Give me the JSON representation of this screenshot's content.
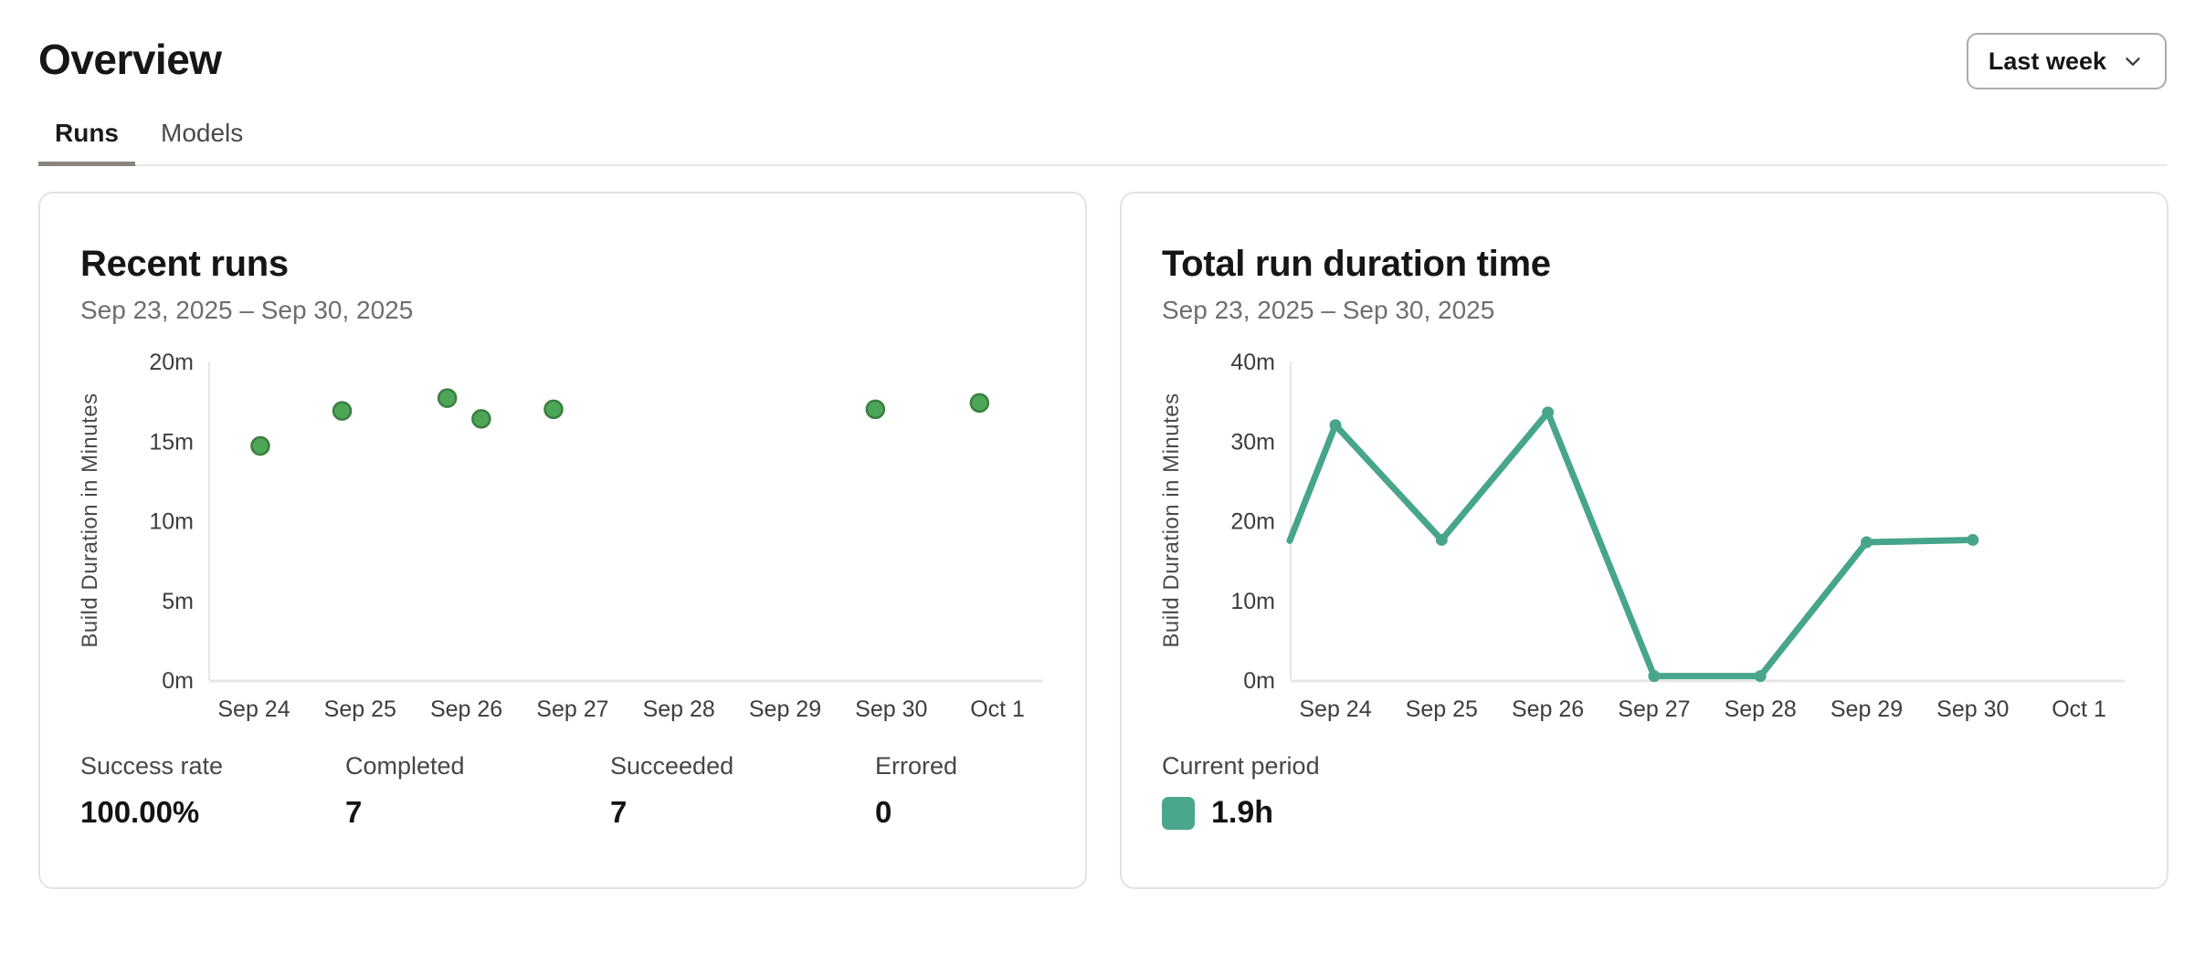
{
  "colors": {
    "scatter_point_fill": "#4DA657",
    "scatter_point_border": "#3A7E42",
    "line_teal": "#46A58A",
    "legend_swatch": "#4AA78C",
    "axis_line": "#e8e6e4",
    "active_tab_underline": "#8b8580",
    "card_border": "#e5e3e0",
    "text_primary": "#161616",
    "text_secondary": "#6e6e6e",
    "tick_text": "#3d3d3d"
  },
  "header": {
    "title": "Overview",
    "period_selector": "Last week"
  },
  "tabs": [
    {
      "label": "Runs",
      "active": true
    },
    {
      "label": "Models",
      "active": false
    }
  ],
  "cards": {
    "recent_runs": {
      "title": "Recent runs",
      "date_range": "Sep 23, 2025 – Sep 30, 2025",
      "stats": [
        {
          "label": "Success rate",
          "value": "100.00%"
        },
        {
          "label": "Completed",
          "value": "7"
        },
        {
          "label": "Succeeded",
          "value": "7"
        },
        {
          "label": "Errored",
          "value": "0"
        }
      ]
    },
    "total_run_duration": {
      "title": "Total run duration time",
      "date_range": "Sep 23, 2025 – Sep 30, 2025",
      "legend": {
        "label": "Current period",
        "value": "1.9h"
      }
    }
  },
  "chart_data": [
    {
      "type": "scatter",
      "title": "Recent runs",
      "xlabel": "",
      "ylabel": "Build Duration in Minutes",
      "ylim": [
        0,
        20
      ],
      "grid": false,
      "yticks": [
        {
          "value": 0,
          "label": "0m"
        },
        {
          "value": 5,
          "label": "5m"
        },
        {
          "value": 10,
          "label": "10m"
        },
        {
          "value": 15,
          "label": "15m"
        },
        {
          "value": 20,
          "label": "20m"
        }
      ],
      "xticks": [
        "Sep 24",
        "Sep 25",
        "Sep 26",
        "Sep 27",
        "Sep 28",
        "Sep 29",
        "Sep 30",
        "Oct 1"
      ],
      "x_unit": "day index relative to the Sep 24 tick (fractional allowed)",
      "x_axis_start": -0.43,
      "x_axis_end": 7.45,
      "points": [
        {
          "x": 0.06,
          "y": 14.7
        },
        {
          "x": 0.83,
          "y": 16.9
        },
        {
          "x": 1.82,
          "y": 17.7
        },
        {
          "x": 2.14,
          "y": 16.4
        },
        {
          "x": 2.82,
          "y": 17.0
        },
        {
          "x": 5.85,
          "y": 17.0
        },
        {
          "x": 6.83,
          "y": 17.4
        }
      ],
      "point_color": "#4DA657",
      "point_border": "#3A7E42"
    },
    {
      "type": "line",
      "title": "Total run duration time",
      "xlabel": "",
      "ylabel": "Build Duration in Minutes",
      "ylim": [
        0,
        40
      ],
      "grid": false,
      "yticks": [
        {
          "value": 0,
          "label": "0m"
        },
        {
          "value": 10,
          "label": "10m"
        },
        {
          "value": 20,
          "label": "20m"
        },
        {
          "value": 30,
          "label": "30m"
        },
        {
          "value": 40,
          "label": "40m"
        }
      ],
      "xticks": [
        "Sep 24",
        "Sep 25",
        "Sep 26",
        "Sep 27",
        "Sep 28",
        "Sep 29",
        "Sep 30",
        "Oct 1"
      ],
      "x_unit": "day index relative to the Sep 24 tick (fractional allowed); first point is clipped at the y-axis (Sep 23 side)",
      "x_axis_start": -0.43,
      "x_axis_end": 7.45,
      "points": [
        {
          "x": -0.43,
          "y": 17.5,
          "edge": true
        },
        {
          "x": 0,
          "y": 32.0
        },
        {
          "x": 1,
          "y": 17.6
        },
        {
          "x": 2,
          "y": 33.6
        },
        {
          "x": 3,
          "y": 0.5
        },
        {
          "x": 4,
          "y": 0.5
        },
        {
          "x": 5,
          "y": 17.3
        },
        {
          "x": 6,
          "y": 17.6
        }
      ],
      "line_color": "#46A58A",
      "markers": true,
      "legend": {
        "label": "Current period",
        "value": "1.9h",
        "position": "below"
      }
    }
  ]
}
